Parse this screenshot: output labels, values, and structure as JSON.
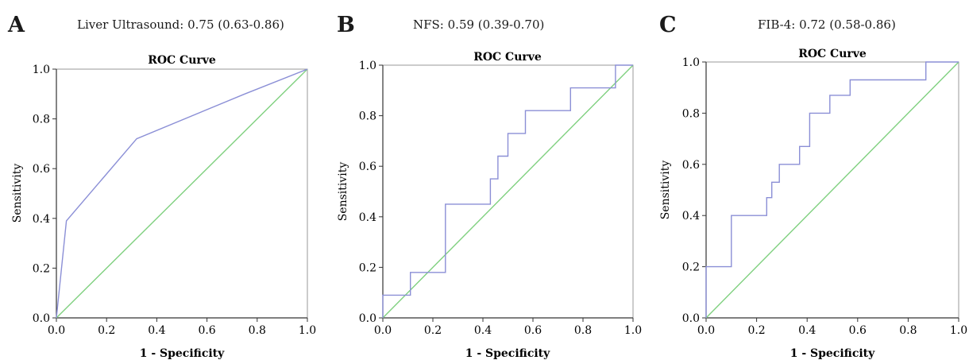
{
  "chart_data": [
    {
      "type": "line",
      "panel_label": "A",
      "caption": "Liver Ultrasound: 0.75 (0.63-0.86)",
      "title": "ROC Curve",
      "xlabel": "1 - Specificity",
      "ylabel": "Sensitivity",
      "xlim": [
        0,
        1
      ],
      "ylim": [
        0,
        1
      ],
      "xticks": [
        "0.0",
        "0.2",
        "0.4",
        "0.6",
        "0.8",
        "1.0"
      ],
      "yticks": [
        "0.0",
        "0.2",
        "0.4",
        "0.6",
        "0.8",
        "1.0"
      ],
      "grid": false,
      "series": [
        {
          "x": [
            0,
            0.04,
            0.32,
            0.75,
            1.0
          ],
          "y": [
            0,
            0.39,
            0.72,
            0.9,
            1.0
          ],
          "color": "#8b8fd6"
        },
        {
          "x": [
            0,
            1
          ],
          "y": [
            0,
            1
          ],
          "color": "#7fd07f"
        }
      ]
    },
    {
      "type": "line",
      "panel_label": "B",
      "caption": "NFS: 0.59 (0.39-0.70)",
      "title": "ROC Curve",
      "xlabel": "1 - Specificity",
      "ylabel": "Sensitivity",
      "xlim": [
        0,
        1
      ],
      "ylim": [
        0,
        1
      ],
      "xticks": [
        "0.0",
        "0.2",
        "0.4",
        "0.6",
        "0.8",
        "1.0"
      ],
      "yticks": [
        "0.0",
        "0.2",
        "0.4",
        "0.6",
        "0.8",
        "1.0"
      ],
      "grid": false,
      "series": [
        {
          "x": [
            0,
            0,
            0.11,
            0.11,
            0.25,
            0.25,
            0.43,
            0.43,
            0.46,
            0.46,
            0.5,
            0.5,
            0.57,
            0.57,
            0.75,
            0.75,
            0.93,
            0.93,
            1.0
          ],
          "y": [
            0,
            0.09,
            0.09,
            0.18,
            0.18,
            0.45,
            0.45,
            0.55,
            0.55,
            0.64,
            0.64,
            0.73,
            0.73,
            0.82,
            0.82,
            0.91,
            0.91,
            1.0,
            1.0
          ],
          "color": "#8b8fd6"
        },
        {
          "x": [
            0,
            1
          ],
          "y": [
            0,
            1
          ],
          "color": "#7fd07f"
        }
      ]
    },
    {
      "type": "line",
      "panel_label": "C",
      "caption": "FIB-4: 0.72 (0.58-0.86)",
      "title": "ROC Curve",
      "xlabel": "1 - Specificity",
      "ylabel": "Sensitivity",
      "xlim": [
        0,
        1
      ],
      "ylim": [
        0,
        1
      ],
      "xticks": [
        "0.0",
        "0.2",
        "0.4",
        "0.6",
        "0.8",
        "1.0"
      ],
      "yticks": [
        "0.0",
        "0.2",
        "0.4",
        "0.6",
        "0.8",
        "1.0"
      ],
      "grid": false,
      "series": [
        {
          "x": [
            0,
            0,
            0.1,
            0.1,
            0.24,
            0.24,
            0.26,
            0.26,
            0.29,
            0.29,
            0.37,
            0.37,
            0.41,
            0.41,
            0.49,
            0.49,
            0.57,
            0.57,
            0.87,
            0.87,
            1.0
          ],
          "y": [
            0,
            0.2,
            0.2,
            0.4,
            0.4,
            0.47,
            0.47,
            0.53,
            0.53,
            0.6,
            0.6,
            0.67,
            0.67,
            0.8,
            0.8,
            0.87,
            0.87,
            0.93,
            0.93,
            1.0,
            1.0
          ],
          "color": "#8b8fd6"
        },
        {
          "x": [
            0,
            1
          ],
          "y": [
            0,
            1
          ],
          "color": "#7fd07f"
        }
      ]
    }
  ]
}
